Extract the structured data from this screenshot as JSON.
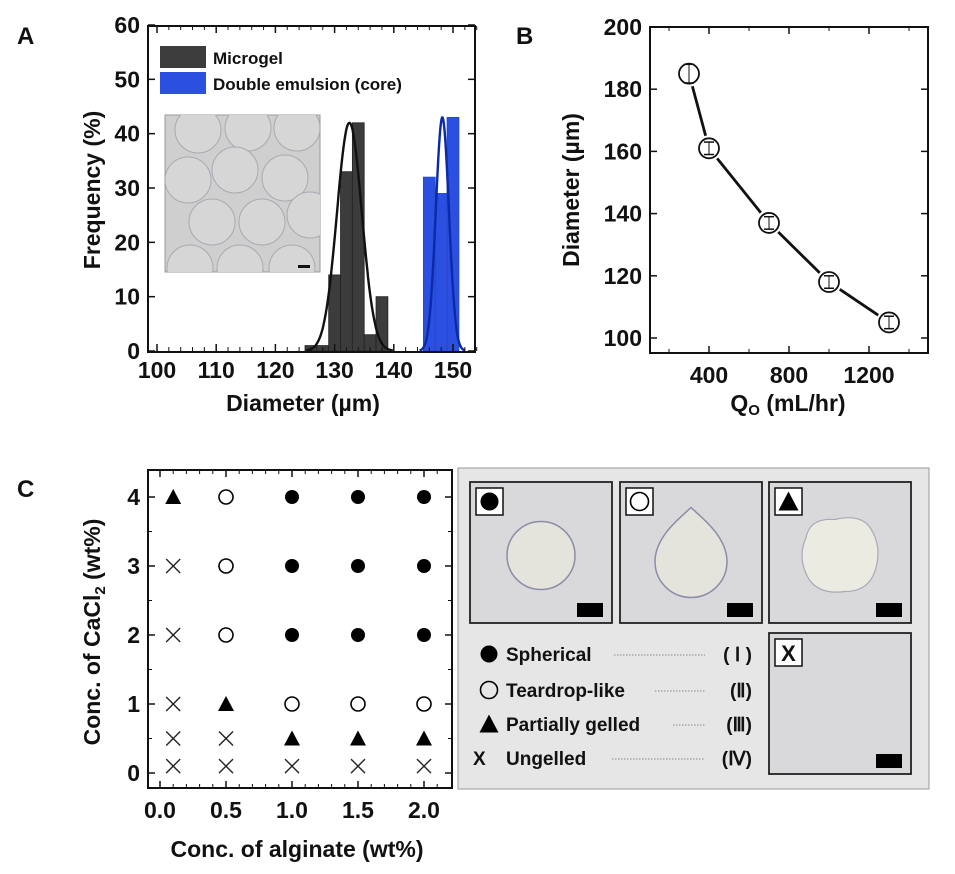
{
  "panels": {
    "a": {
      "letter": "A"
    },
    "b": {
      "letter": "B"
    },
    "c": {
      "letter": "C"
    }
  },
  "chart_data": [
    {
      "id": "A",
      "type": "bar",
      "title": "",
      "xlabel": "Diameter (µm)",
      "ylabel": "Frequency (%)",
      "xlim": [
        98,
        155
      ],
      "ylim": [
        0,
        60
      ],
      "xticks": [
        "100",
        "110",
        "120",
        "130",
        "140",
        "150"
      ],
      "yticks": [
        "0",
        "10",
        "20",
        "30",
        "40",
        "50",
        "60"
      ],
      "legend_position": "top-left",
      "inset": "micrograph of microgel particles with scale bar",
      "series": [
        {
          "name": "Microgel",
          "color": "#3c3c3c",
          "bin_width": 2,
          "bins": [
            126,
            128,
            130,
            132,
            134,
            136,
            138
          ],
          "values": [
            1,
            1,
            14,
            33,
            42,
            3,
            10
          ],
          "fit": {
            "type": "gaussian",
            "mean": 132.5,
            "peak": 42,
            "sigma": 2.1
          }
        },
        {
          "name": "Double emulsion (core)",
          "color": "#2b4fe0",
          "bin_width": 2,
          "bins": [
            146,
            148,
            150
          ],
          "values": [
            32,
            29,
            43
          ],
          "fit": {
            "type": "gaussian",
            "mean": 148.2,
            "peak": 43,
            "sigma": 1.1,
            "color": "#0a2aa8"
          }
        }
      ]
    },
    {
      "id": "B",
      "type": "line",
      "xlabel": "Q",
      "xlabel_sub": "O",
      "xlabel_rest": " (mL/hr)",
      "ylabel": "Diameter (µm)",
      "xlim": [
        100,
        1500
      ],
      "ylim": [
        95,
        200
      ],
      "xticks": [
        "400",
        "800",
        "1200"
      ],
      "yticks": [
        "100",
        "120",
        "140",
        "160",
        "180",
        "200"
      ],
      "x": [
        300,
        400,
        700,
        1000,
        1300
      ],
      "y": [
        185,
        161,
        137,
        118,
        105
      ],
      "error": [
        3,
        2,
        2,
        2,
        2
      ],
      "marker": "open-circle"
    },
    {
      "id": "C",
      "type": "scatter",
      "xlabel": "Conc. of alginate (wt%)",
      "ylabel_pre": "Conc. of CaCl",
      "ylabel_sub": "2",
      "ylabel_post": " (wt%)",
      "xlim": [
        -0.1,
        2.2
      ],
      "ylim": [
        -0.2,
        4.35
      ],
      "xticks": [
        "0.0",
        "0.5",
        "1.0",
        "1.5",
        "2.0"
      ],
      "yticks": [
        "0",
        "1",
        "2",
        "3",
        "4"
      ],
      "x_levels": [
        0.1,
        0.5,
        1.0,
        1.5,
        2.0
      ],
      "y_levels": [
        0.1,
        0.5,
        1,
        2,
        3,
        4
      ],
      "grid_note": "rows listed by y level; columns by x level",
      "points": [
        {
          "y": 4,
          "types": [
            "triangle",
            "open-circle",
            "filled-circle",
            "filled-circle",
            "filled-circle"
          ]
        },
        {
          "y": 3,
          "types": [
            "cross",
            "open-circle",
            "filled-circle",
            "filled-circle",
            "filled-circle"
          ]
        },
        {
          "y": 2,
          "types": [
            "cross",
            "open-circle",
            "filled-circle",
            "filled-circle",
            "filled-circle"
          ]
        },
        {
          "y": 1,
          "types": [
            "cross",
            "triangle",
            "open-circle",
            "open-circle",
            "open-circle"
          ]
        },
        {
          "y": 0.5,
          "types": [
            "cross",
            "cross",
            "triangle",
            "triangle",
            "triangle"
          ]
        },
        {
          "y": 0.1,
          "types": [
            "cross",
            "cross",
            "cross",
            "cross",
            "cross"
          ]
        }
      ],
      "legend": [
        {
          "symbol": "filled-circle",
          "label": "Spherical",
          "roman": "( Ⅰ )"
        },
        {
          "symbol": "open-circle",
          "label": "Teardrop-like",
          "roman": "(Ⅱ)"
        },
        {
          "symbol": "triangle",
          "label": "Partially gelled",
          "roman": "(Ⅲ)"
        },
        {
          "symbol": "cross",
          "label": "Ungelled",
          "roman": "(Ⅳ)"
        }
      ],
      "micrographs": [
        {
          "symbol": "filled-circle",
          "shape": "sphere"
        },
        {
          "symbol": "open-circle",
          "shape": "teardrop"
        },
        {
          "symbol": "triangle",
          "shape": "irregular"
        },
        {
          "symbol": "cross",
          "shape": "none",
          "badge_text": "X"
        }
      ]
    }
  ]
}
